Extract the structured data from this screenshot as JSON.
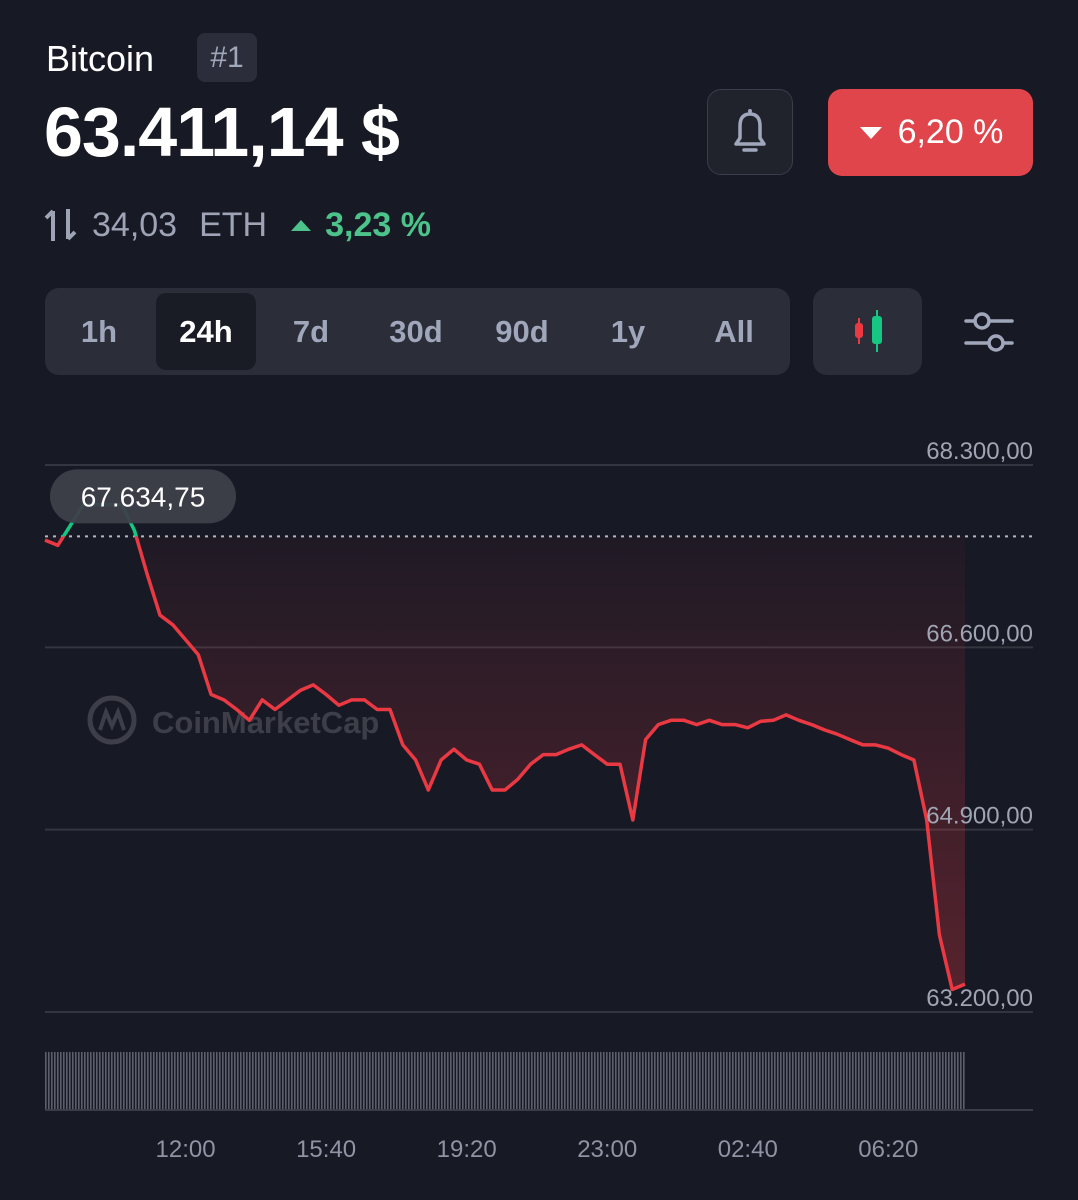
{
  "header": {
    "name": "Bitcoin",
    "rank": "#1",
    "price": "63.411,14 $",
    "change": "6,20 %",
    "pair_value": "34,03",
    "pair_unit": "ETH",
    "pair_change": "3,23 %"
  },
  "tabs": {
    "items": [
      "1h",
      "24h",
      "7d",
      "30d",
      "90d",
      "1y",
      "All"
    ],
    "selected_index": 1
  },
  "chart_data": {
    "type": "line",
    "watermark": "CoinMarketCap",
    "categories": [
      null,
      null,
      null,
      null,
      null,
      null,
      null,
      null,
      null,
      null,
      null,
      "12:00",
      null,
      null,
      null,
      null,
      null,
      null,
      null,
      null,
      null,
      null,
      "15:40",
      null,
      null,
      null,
      null,
      null,
      null,
      null,
      null,
      null,
      null,
      "19:20",
      null,
      null,
      null,
      null,
      null,
      null,
      null,
      null,
      null,
      null,
      "23:00",
      null,
      null,
      null,
      null,
      null,
      null,
      null,
      null,
      null,
      null,
      "02:40",
      null,
      null,
      null,
      null,
      null,
      null,
      null,
      null,
      null,
      null,
      "06:20",
      null,
      null,
      null,
      null,
      null,
      null
    ],
    "values": [
      67600,
      67550,
      67740,
      67930,
      67930,
      67930,
      67930,
      67690,
      67280,
      66900,
      66810,
      66670,
      66530,
      66160,
      66110,
      66020,
      65920,
      66110,
      66020,
      66110,
      66200,
      66250,
      66160,
      66060,
      66110,
      66110,
      66020,
      66020,
      65690,
      65550,
      65270,
      65550,
      65650,
      65550,
      65510,
      65270,
      65270,
      65370,
      65510,
      65600,
      65600,
      65650,
      65690,
      65600,
      65510,
      65510,
      64990,
      65740,
      65880,
      65920,
      65920,
      65880,
      65920,
      65880,
      65880,
      65850,
      65910,
      65920,
      65970,
      65920,
      65880,
      65830,
      65790,
      65740,
      65690,
      65690,
      65660,
      65600,
      65550,
      64990,
      63920,
      63410,
      63460
    ],
    "color": "#ea3943",
    "up_color": "#16c784",
    "reference": {
      "value": 67634.75,
      "label": "67.634,75"
    },
    "ylim": [
      63200,
      68300
    ],
    "yticks": [
      {
        "value": 63200,
        "label": "63.200,00"
      },
      {
        "value": 64900,
        "label": "64.900,00"
      },
      {
        "value": 66600,
        "label": "66.600,00"
      },
      {
        "value": 68300,
        "label": "68.300,00"
      }
    ],
    "grid": true
  }
}
